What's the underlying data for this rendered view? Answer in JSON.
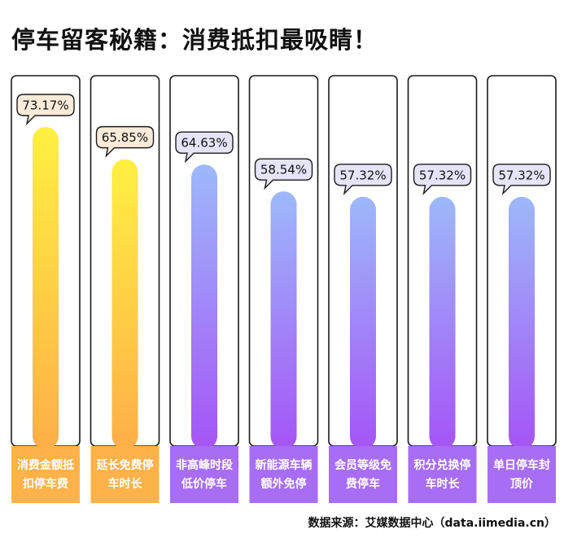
{
  "title": "停车留客秘籍：消费抵扣最吸睛！",
  "source": "数据来源：艾媒数据中心（data.iimedia.cn）",
  "colors": {
    "warm_top": "#FFF042",
    "warm_bottom": "#FFAE48",
    "cool_top": "#9DB9FA",
    "cool_bottom": "#A554F5",
    "warm_label_bg": "#FFB24A",
    "cool_label_bg": "#A76DF5",
    "warm_bubble_bg": "#FBEBD8",
    "cool_bubble_bg": "#E6E4F9"
  },
  "chart_data": {
    "type": "bar",
    "unit": "%",
    "ylim": [
      0,
      100
    ],
    "categories": [
      [
        "消费金额抵",
        "扣停车费"
      ],
      [
        "延长免费停",
        "车时长"
      ],
      [
        "非高峰时段",
        "低价停车"
      ],
      [
        "新能源车辆",
        "额外免停"
      ],
      [
        "会员等级免",
        "费停车"
      ],
      [
        "积分兑换停",
        "车时长"
      ],
      [
        "单日停车封",
        "顶价"
      ]
    ],
    "values": [
      73.17,
      65.85,
      64.63,
      58.54,
      57.32,
      57.32,
      57.32
    ],
    "value_labels": [
      "73.17%",
      "65.85%",
      "64.63%",
      "58.54%",
      "57.32%",
      "57.32%",
      "57.32%"
    ],
    "palette": [
      "warm",
      "warm",
      "cool",
      "cool",
      "cool",
      "cool",
      "cool"
    ]
  }
}
